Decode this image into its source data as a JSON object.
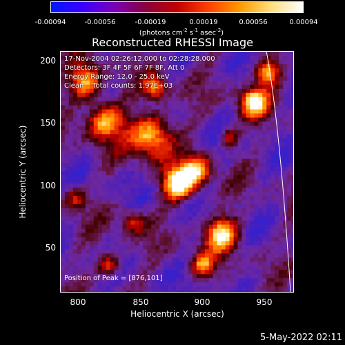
{
  "colorbar": {
    "ticks": [
      "-0.00094",
      "-0.00056",
      "-0.00019",
      "0.00019",
      "0.00056",
      "0.00094"
    ],
    "unit_prefix": "(photons cm",
    "unit_sup1": "-2",
    "unit_mid1": " s",
    "unit_sup2": "-1",
    "unit_mid2": " asec",
    "unit_sup3": "-2",
    "unit_suffix": ")",
    "colors": [
      "#0018ff",
      "#3a00ff",
      "#7a00b8",
      "#8a0040",
      "#c00000",
      "#ff4000",
      "#ff9a00",
      "#ffe080",
      "#ffffff"
    ]
  },
  "title": "Reconstructed RHESSI Image",
  "info": {
    "time_range": "17-Nov-2004 02:26:12.000 to 02:28:28.000",
    "detectors": "Detectors: 3F 4F 5F 6F 7F 8F, Att 0",
    "energy": "Energy Range: 12.0 - 25.0 keV",
    "clean": "Clean    Total counts: 1.97E+03"
  },
  "peak": "Position of Peak = [876,101]",
  "axes": {
    "xlabel": "Heliocentric X (arcsec)",
    "ylabel": "Heliocentric Y (arcsec)",
    "x_ticks": [
      "800",
      "850",
      "900",
      "950"
    ],
    "y_ticks": [
      "200",
      "150",
      "100",
      "50"
    ]
  },
  "datestamp": "5-May-2022 02:11"
}
